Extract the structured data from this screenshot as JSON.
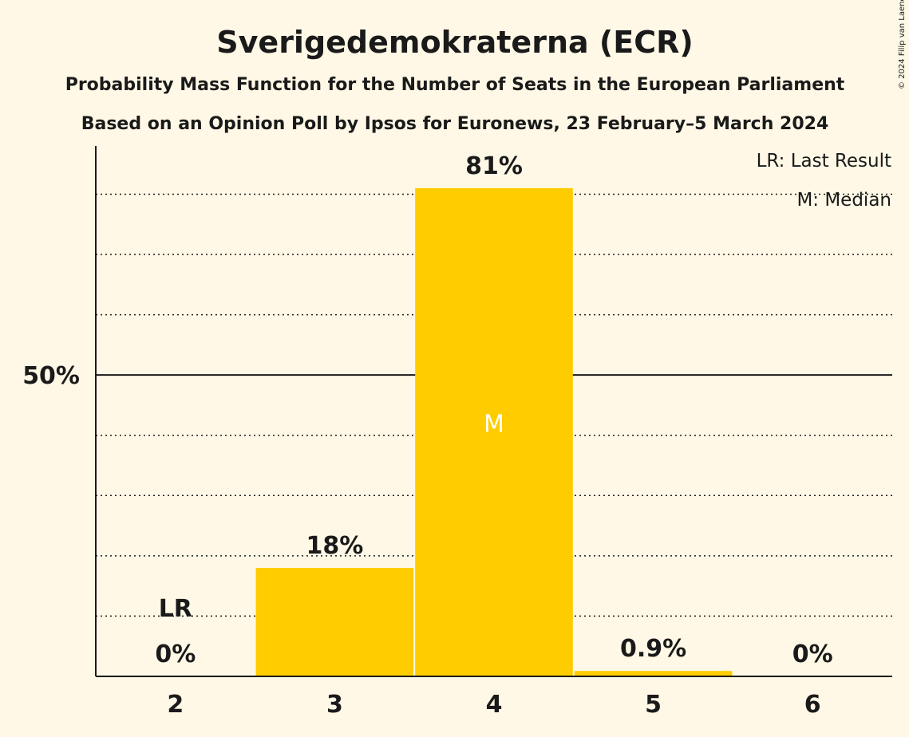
{
  "title": "Sverigedemokraterna (ECR)",
  "subtitle1": "Probability Mass Function for the Number of Seats in the European Parliament",
  "subtitle2": "Based on an Opinion Poll by Ipsos for Euronews, 23 February–5 March 2024",
  "copyright": "© 2024 Filip van Laenen",
  "legend": {
    "last_result": "LR: Last Result",
    "median": "M: Median"
  },
  "colors": {
    "bar": "#ffcc00",
    "background": "#fff8e6",
    "text": "#1a1a1a"
  },
  "chart_data": {
    "type": "bar",
    "categories": [
      "2",
      "3",
      "4",
      "5",
      "6"
    ],
    "values": [
      0,
      18,
      81,
      0.9,
      0
    ],
    "value_labels": [
      "0%",
      "18%",
      "81%",
      "0.9%",
      "0%"
    ],
    "ylim": [
      0,
      88
    ],
    "y_ticks": [
      {
        "value": 50,
        "label": "50%"
      }
    ],
    "gridlines_dotted": [
      10,
      20,
      30,
      40,
      60,
      70,
      80
    ],
    "last_result": {
      "category": "2",
      "label": "LR"
    },
    "median": {
      "category": "4",
      "label": "M"
    },
    "legend_position": "top-right"
  }
}
